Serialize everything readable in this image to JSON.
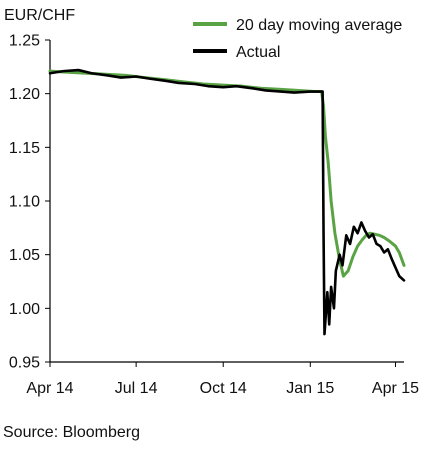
{
  "chart_data": {
    "type": "line",
    "ylabel": "EUR/CHF",
    "source": "Source: Bloomberg",
    "x_ticks": [
      "Apr 14",
      "Jul 14",
      "Oct 14",
      "Jan 15",
      "Apr 15"
    ],
    "x_range": [
      "2014-04-01",
      "2015-04-10"
    ],
    "ylim": [
      0.95,
      1.25
    ],
    "y_ticks": [
      "1.25",
      "1.20",
      "1.15",
      "1.10",
      "1.05",
      "1.00",
      "0.95"
    ],
    "legend_position": "top-right",
    "grid": false,
    "colors": {
      "moving_average": "#5aa345",
      "actual": "#000000",
      "axis": "#000000"
    },
    "series": [
      {
        "name": "20 day moving average",
        "x": [
          "2014-04-01",
          "2014-04-20",
          "2014-05-10",
          "2014-06-01",
          "2014-06-20",
          "2014-07-10",
          "2014-08-01",
          "2014-08-20",
          "2014-09-10",
          "2014-10-01",
          "2014-10-20",
          "2014-11-10",
          "2014-12-01",
          "2014-12-20",
          "2015-01-05",
          "2015-01-13",
          "2015-01-15",
          "2015-01-17",
          "2015-01-20",
          "2015-01-23",
          "2015-01-27",
          "2015-02-01",
          "2015-02-05",
          "2015-02-10",
          "2015-02-15",
          "2015-02-20",
          "2015-02-25",
          "2015-03-01",
          "2015-03-05",
          "2015-03-10",
          "2015-03-15",
          "2015-03-20",
          "2015-03-25",
          "2015-04-01",
          "2015-04-05",
          "2015-04-10"
        ],
        "values": [
          1.221,
          1.22,
          1.219,
          1.218,
          1.217,
          1.215,
          1.213,
          1.211,
          1.209,
          1.208,
          1.207,
          1.205,
          1.204,
          1.203,
          1.202,
          1.202,
          1.188,
          1.16,
          1.135,
          1.1,
          1.07,
          1.045,
          1.03,
          1.035,
          1.048,
          1.058,
          1.064,
          1.068,
          1.07,
          1.069,
          1.068,
          1.066,
          1.063,
          1.058,
          1.052,
          1.04
        ]
      },
      {
        "name": "Actual",
        "x": [
          "2014-04-01",
          "2014-04-15",
          "2014-05-01",
          "2014-05-15",
          "2014-06-01",
          "2014-06-15",
          "2014-07-01",
          "2014-07-15",
          "2014-08-01",
          "2014-08-15",
          "2014-09-01",
          "2014-09-15",
          "2014-10-01",
          "2014-10-15",
          "2014-11-01",
          "2014-11-15",
          "2014-12-01",
          "2014-12-15",
          "2015-01-01",
          "2015-01-14",
          "2015-01-15",
          "2015-01-16",
          "2015-01-19",
          "2015-01-21",
          "2015-01-23",
          "2015-01-26",
          "2015-01-28",
          "2015-02-01",
          "2015-02-04",
          "2015-02-08",
          "2015-02-12",
          "2015-02-16",
          "2015-02-20",
          "2015-02-24",
          "2015-02-28",
          "2015-03-04",
          "2015-03-08",
          "2015-03-12",
          "2015-03-16",
          "2015-03-20",
          "2015-03-24",
          "2015-03-28",
          "2015-04-01",
          "2015-04-05",
          "2015-04-10"
        ],
        "values": [
          1.219,
          1.221,
          1.222,
          1.219,
          1.217,
          1.215,
          1.216,
          1.214,
          1.212,
          1.21,
          1.209,
          1.207,
          1.206,
          1.207,
          1.205,
          1.203,
          1.202,
          1.201,
          1.202,
          1.202,
          1.07,
          0.976,
          1.015,
          0.985,
          1.02,
          1.0,
          1.035,
          1.05,
          1.04,
          1.068,
          1.06,
          1.076,
          1.07,
          1.08,
          1.072,
          1.066,
          1.069,
          1.06,
          1.058,
          1.052,
          1.055,
          1.046,
          1.038,
          1.03,
          1.026
        ]
      }
    ]
  }
}
